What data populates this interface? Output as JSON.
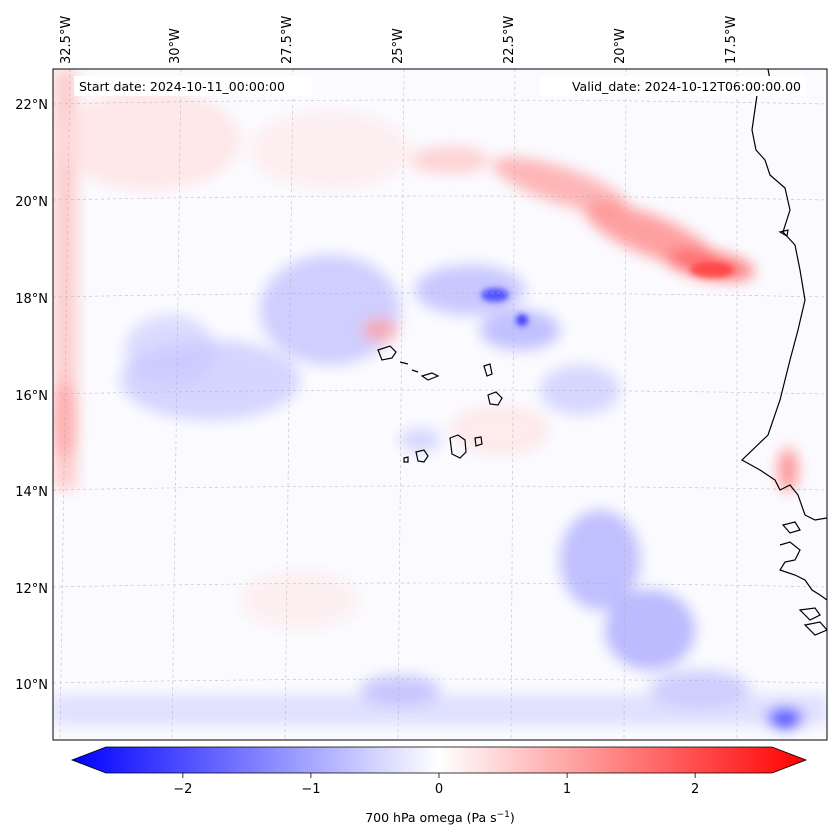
{
  "map": {
    "start_date": "Start date: 2024-10-11_00:00:00",
    "valid_date": "Valid_date: 2024-10-12T06:00:00.00",
    "lon_ticks": [
      "32.5°W",
      "30°W",
      "27.5°W",
      "25°W",
      "22.5°W",
      "20°W",
      "17.5°W"
    ],
    "lat_ticks": [
      "22°N",
      "20°N",
      "18°N",
      "16°N",
      "14°N",
      "12°N",
      "10°N"
    ]
  },
  "colorbar": {
    "title": "700 hPa omega (Pa s",
    "title_sup": "−1",
    "title_end": ")",
    "ticks": [
      "−2",
      "−1",
      "0",
      "1",
      "2"
    ],
    "min": -2.6,
    "max": 2.6,
    "colors": {
      "negative": "#0000ff",
      "neutral": "#ffffff",
      "positive": "#ff0000"
    }
  }
}
